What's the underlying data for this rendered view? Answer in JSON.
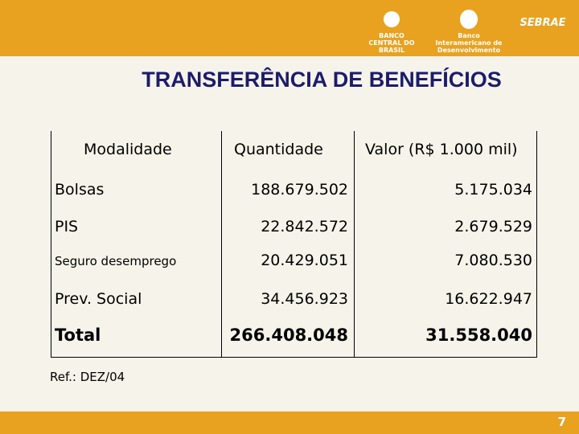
{
  "header": {
    "logos": [
      "BANCO CENTRAL DO BRASIL",
      "Banco Interamericano de Desenvolvimento",
      "SEBRAE"
    ]
  },
  "title": "TRANSFERÊNCIA DE BENEFÍCIOS",
  "table": {
    "columns": [
      "Modalidade",
      "Quantidade",
      "Valor (R$ 1.000  mil)"
    ],
    "rows": [
      [
        "Bolsas",
        "188.679.502",
        "5.175.034"
      ],
      [
        "PIS",
        "22.842.572",
        "2.679.529"
      ],
      [
        "Seguro desemprego",
        "20.429.051",
        "7.080.530"
      ],
      [
        "Prev. Social",
        "34.456.923",
        "16.622.947"
      ],
      [
        "Total",
        "266.408.048",
        "31.558.040"
      ]
    ]
  },
  "note": "Ref.: DEZ/04",
  "page_number": "7"
}
